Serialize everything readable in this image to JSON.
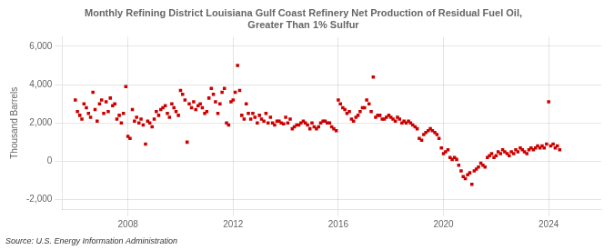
{
  "chart_data": {
    "type": "scatter",
    "title": "Monthly Refining District Louisiana Gulf Coast Refinery Net Production of Residual Fuel Oil,\nGreater Than 1% Sulfur",
    "ylabel": "Thousand Barrels",
    "annotations": [
      "Source: U.S. Energy Information Administration"
    ],
    "color": "#cc0000",
    "marker": "square",
    "grid": true,
    "xlim": [
      2005.5,
      2026.0
    ],
    "xticks": [
      2008,
      2012,
      2016,
      2020,
      2024
    ],
    "ylim": [
      -2500,
      6500
    ],
    "yticks": [
      {
        "value": -2000,
        "label": "-2,000"
      },
      0,
      {
        "value": 2000,
        "label": "2,000"
      },
      {
        "value": 4000,
        "label": "4,000"
      },
      {
        "value": 6000,
        "label": "6,000"
      }
    ],
    "x": [
      2006.0,
      2006.08,
      2006.17,
      2006.25,
      2006.33,
      2006.42,
      2006.5,
      2006.58,
      2006.67,
      2006.75,
      2006.83,
      2006.92,
      2007.0,
      2007.08,
      2007.17,
      2007.25,
      2007.33,
      2007.42,
      2007.5,
      2007.58,
      2007.67,
      2007.75,
      2007.83,
      2007.92,
      2008.0,
      2008.08,
      2008.17,
      2008.25,
      2008.33,
      2008.42,
      2008.5,
      2008.58,
      2008.67,
      2008.75,
      2008.83,
      2008.92,
      2009.0,
      2009.08,
      2009.17,
      2009.25,
      2009.33,
      2009.42,
      2009.5,
      2009.58,
      2009.67,
      2009.75,
      2009.83,
      2009.92,
      2010.0,
      2010.08,
      2010.17,
      2010.25,
      2010.33,
      2010.42,
      2010.5,
      2010.58,
      2010.67,
      2010.75,
      2010.83,
      2010.92,
      2011.0,
      2011.08,
      2011.17,
      2011.25,
      2011.33,
      2011.42,
      2011.5,
      2011.58,
      2011.67,
      2011.75,
      2011.83,
      2011.92,
      2012.0,
      2012.08,
      2012.17,
      2012.25,
      2012.33,
      2012.42,
      2012.5,
      2012.58,
      2012.67,
      2012.75,
      2012.83,
      2012.92,
      2013.0,
      2013.08,
      2013.17,
      2013.25,
      2013.33,
      2013.42,
      2013.5,
      2013.58,
      2013.67,
      2013.75,
      2013.83,
      2013.92,
      2014.0,
      2014.08,
      2014.17,
      2014.25,
      2014.33,
      2014.42,
      2014.5,
      2014.58,
      2014.67,
      2014.75,
      2014.83,
      2014.92,
      2015.0,
      2015.08,
      2015.17,
      2015.25,
      2015.33,
      2015.42,
      2015.5,
      2015.58,
      2015.67,
      2015.75,
      2015.83,
      2015.92,
      2016.0,
      2016.08,
      2016.17,
      2016.25,
      2016.33,
      2016.42,
      2016.5,
      2016.58,
      2016.67,
      2016.75,
      2016.83,
      2016.92,
      2017.0,
      2017.08,
      2017.17,
      2017.25,
      2017.33,
      2017.42,
      2017.5,
      2017.58,
      2017.67,
      2017.75,
      2017.83,
      2017.92,
      2018.0,
      2018.08,
      2018.17,
      2018.25,
      2018.33,
      2018.42,
      2018.5,
      2018.58,
      2018.67,
      2018.75,
      2018.83,
      2018.92,
      2019.0,
      2019.08,
      2019.17,
      2019.25,
      2019.33,
      2019.42,
      2019.5,
      2019.58,
      2019.67,
      2019.75,
      2019.83,
      2019.92,
      2020.0,
      2020.08,
      2020.17,
      2020.25,
      2020.33,
      2020.42,
      2020.5,
      2020.58,
      2020.67,
      2020.75,
      2020.83,
      2020.92,
      2021.0,
      2021.08,
      2021.17,
      2021.25,
      2021.33,
      2021.42,
      2021.5,
      2021.58,
      2021.67,
      2021.75,
      2021.83,
      2021.92,
      2022.0,
      2022.08,
      2022.17,
      2022.25,
      2022.33,
      2022.42,
      2022.5,
      2022.58,
      2022.67,
      2022.75,
      2022.83,
      2022.92,
      2023.0,
      2023.08,
      2023.17,
      2023.25,
      2023.33,
      2023.42,
      2023.5,
      2023.58,
      2023.67,
      2023.75,
      2023.83,
      2023.92,
      2024.0,
      2024.08,
      2024.17,
      2024.25,
      2024.33,
      2024.42
    ],
    "values": [
      3200,
      2600,
      2400,
      2200,
      3000,
      2800,
      2500,
      2300,
      3600,
      2700,
      2100,
      3000,
      3200,
      2500,
      3100,
      2600,
      3300,
      2900,
      3000,
      2200,
      2400,
      2000,
      2500,
      3900,
      1300,
      1200,
      2700,
      2100,
      2300,
      2000,
      2200,
      1900,
      900,
      2100,
      2000,
      1800,
      2200,
      2600,
      2400,
      2700,
      2800,
      2900,
      2500,
      2300,
      3000,
      2800,
      2600,
      2400,
      3700,
      3500,
      3200,
      1000,
      3000,
      2800,
      3100,
      2700,
      2900,
      3000,
      2800,
      2500,
      2600,
      3300,
      3800,
      3500,
      3100,
      2500,
      3000,
      3600,
      3800,
      2000,
      1900,
      3100,
      3200,
      3600,
      5000,
      3700,
      2400,
      2200,
      3000,
      2500,
      2200,
      2500,
      2300,
      2000,
      2400,
      2200,
      2100,
      2500,
      2000,
      2300,
      2000,
      1900,
      2100,
      2100,
      2000,
      1950,
      2300,
      2000,
      2200,
      1700,
      1800,
      1900,
      1900,
      2000,
      2100,
      2000,
      1900,
      1700,
      2000,
      1800,
      1700,
      1800,
      2000,
      2100,
      2100,
      2000,
      2000,
      1800,
      1700,
      1600,
      3200,
      3000,
      2800,
      2700,
      2500,
      2600,
      2200,
      2100,
      2300,
      2400,
      2600,
      2800,
      2800,
      3200,
      3000,
      2600,
      4400,
      2300,
      2400,
      2400,
      2200,
      2200,
      2300,
      2400,
      2300,
      2200,
      2100,
      2300,
      2200,
      2000,
      2100,
      2000,
      2100,
      2000,
      1900,
      1800,
      1700,
      1200,
      1100,
      1400,
      1500,
      1600,
      1700,
      1600,
      1500,
      1400,
      1200,
      700,
      400,
      500,
      600,
      200,
      100,
      200,
      100,
      -200,
      -500,
      -800,
      -900,
      -700,
      -600,
      -1200,
      -500,
      -400,
      -300,
      -100,
      -200,
      -300,
      200,
      300,
      400,
      200,
      300,
      500,
      400,
      600,
      500,
      400,
      300,
      500,
      400,
      600,
      500,
      700,
      600,
      500,
      400,
      600,
      700,
      600,
      700,
      800,
      700,
      800,
      700,
      900,
      3100,
      800,
      900,
      700,
      800,
      600
    ]
  }
}
